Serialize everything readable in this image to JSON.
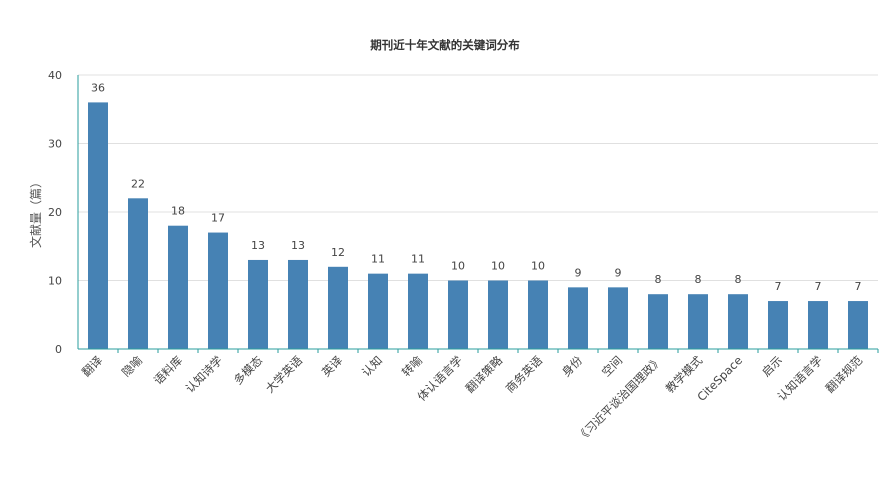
{
  "chart_data": {
    "type": "bar",
    "title": "期刊近十年文献的关键词分布",
    "xlabel": "",
    "ylabel": "文献量（篇）",
    "ylim": [
      0,
      40
    ],
    "yticks": [
      0,
      10,
      20,
      30,
      40
    ],
    "grid": true,
    "bar_color": "#4682b4",
    "categories": [
      "翻译",
      "隐喻",
      "语料库",
      "认知诗学",
      "多模态",
      "大学英语",
      "英译",
      "认知",
      "转喻",
      "体认语言学",
      "翻译策略",
      "商务英语",
      "身份",
      "空间",
      "《习近平谈治国理政》",
      "教学模式",
      "CiteSpace",
      "启示",
      "认知语言学",
      "翻译规范"
    ],
    "values": [
      36,
      22,
      18,
      17,
      13,
      13,
      12,
      11,
      11,
      10,
      10,
      10,
      9,
      9,
      8,
      8,
      8,
      7,
      7,
      7
    ]
  }
}
